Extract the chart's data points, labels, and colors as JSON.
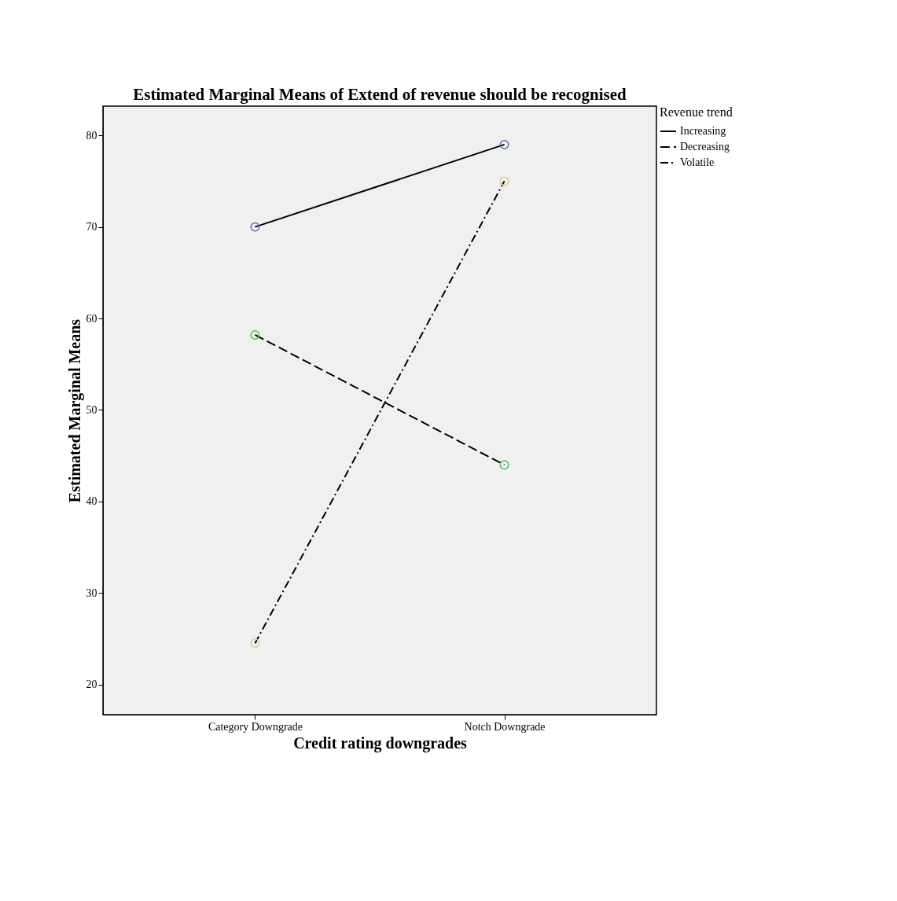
{
  "chart_data": {
    "type": "line",
    "title": "Estimated Marginal Means of Extend of revenue should be recognised",
    "xlabel": "Credit rating downgrades",
    "ylabel": "Estimated Marginal Means",
    "legend_title": "Revenue trend",
    "legend": "top right",
    "marker": "circle",
    "grid": false,
    "categories": [
      "Category Downgrade",
      "Notch Downgrade"
    ],
    "ylim": [
      16.7,
      83.2
    ],
    "yticks": [
      20,
      30,
      40,
      50,
      60,
      70,
      80
    ],
    "series": [
      {
        "name": "Increasing",
        "color": "#000000",
        "line_style": "solid",
        "colors": [
          "#5b6fbf",
          "#5b6fbf"
        ],
        "values": [
          70,
          79
        ]
      },
      {
        "name": "Decreasing",
        "color": "#000000",
        "line_style": "dashed",
        "colors": [
          "#4fbf4f",
          "#4fbf4f"
        ],
        "values": [
          58.2,
          44
        ]
      },
      {
        "name": "Volatile",
        "color": "#000000",
        "line_style": "dashdot",
        "colors": [
          "#d8d0a0",
          "#d8d0a0"
        ],
        "values": [
          24.5,
          75
        ]
      }
    ]
  }
}
